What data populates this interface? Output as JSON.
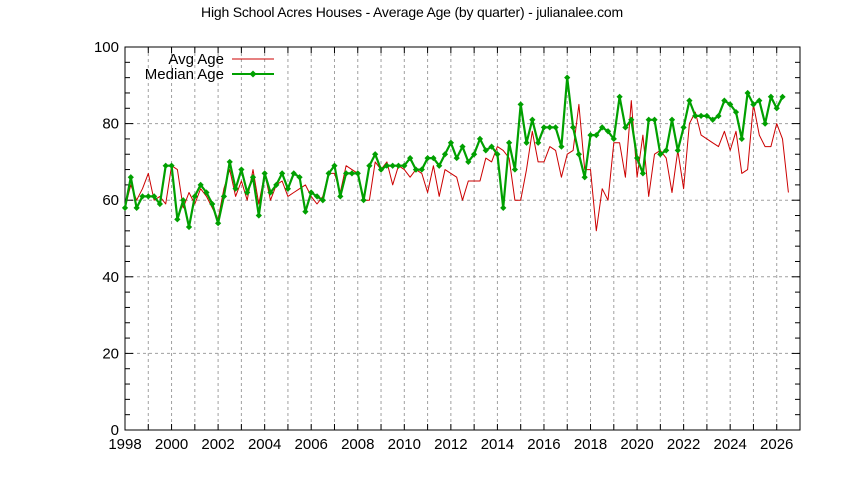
{
  "chart_data": {
    "type": "line",
    "title": "High School Acres Houses - Average Age (by quarter) - julianalee.com",
    "xlabel": "",
    "ylabel": "",
    "xlim": [
      1998,
      2027
    ],
    "ylim": [
      0,
      100
    ],
    "grid": true,
    "legend_position": "top-left",
    "x_ticks": [
      "1998",
      "2000",
      "2002",
      "2004",
      "2006",
      "2008",
      "2010",
      "2012",
      "2014",
      "2016",
      "2018",
      "2020",
      "2022",
      "2024",
      "2026"
    ],
    "y_ticks": [
      "0",
      "20",
      "40",
      "60",
      "80",
      "100"
    ],
    "series": [
      {
        "name": "Avg Age",
        "color": "#cc0000",
        "marker": "none",
        "x_start": 1998.0,
        "x_step": 0.25,
        "values": [
          58,
          64,
          60,
          63,
          67,
          60,
          61,
          59,
          69,
          68,
          58,
          62,
          59,
          63,
          61,
          58,
          55,
          63,
          68,
          61,
          65,
          60,
          68,
          59,
          67,
          60,
          64,
          65,
          61,
          62,
          63,
          64,
          61,
          59,
          61,
          67,
          67,
          62,
          69,
          68,
          67,
          60,
          60,
          70,
          68,
          70,
          64,
          69,
          68,
          66,
          68,
          67,
          62,
          69,
          61,
          68,
          67,
          66,
          60,
          65,
          65,
          65,
          71,
          70,
          74,
          73,
          71,
          60,
          60,
          68,
          78,
          70,
          70,
          74,
          73,
          66,
          72,
          73,
          85,
          68,
          68,
          52,
          63,
          60,
          75,
          75,
          66,
          86,
          66,
          77,
          61,
          72,
          73,
          71,
          62,
          73,
          63,
          80,
          83,
          77,
          76,
          75,
          74,
          78,
          73,
          78,
          67,
          68,
          85,
          77,
          74,
          74,
          80,
          76,
          62
        ]
      },
      {
        "name": "Median Age",
        "color": "#00a000",
        "marker": "diamond",
        "x_start": 1998.0,
        "x_step": 0.25,
        "values": [
          58,
          66,
          58,
          61,
          61,
          61,
          59,
          69,
          69,
          55,
          60,
          53,
          61,
          64,
          62,
          59,
          54,
          61,
          70,
          63,
          68,
          62,
          66,
          56,
          67,
          62,
          64,
          67,
          63,
          67,
          66,
          57,
          62,
          61,
          60,
          67,
          69,
          61,
          67,
          67,
          67,
          60,
          69,
          72,
          68,
          69,
          69,
          69,
          69,
          71,
          68,
          68,
          71,
          71,
          69,
          72,
          75,
          71,
          74,
          70,
          72,
          76,
          73,
          74,
          72,
          58,
          75,
          68,
          85,
          75,
          81,
          75,
          79,
          79,
          79,
          74,
          92,
          79,
          72,
          66,
          77,
          77,
          79,
          78,
          76,
          87,
          79,
          81,
          71,
          67,
          81,
          81,
          72,
          73,
          81,
          73,
          79,
          86,
          82,
          82,
          82,
          81,
          82,
          86,
          85,
          83,
          76,
          88,
          85,
          86,
          80,
          87,
          84,
          87
        ]
      }
    ]
  },
  "legend": {
    "avg_label": "Avg Age",
    "median_label": "Median Age"
  }
}
